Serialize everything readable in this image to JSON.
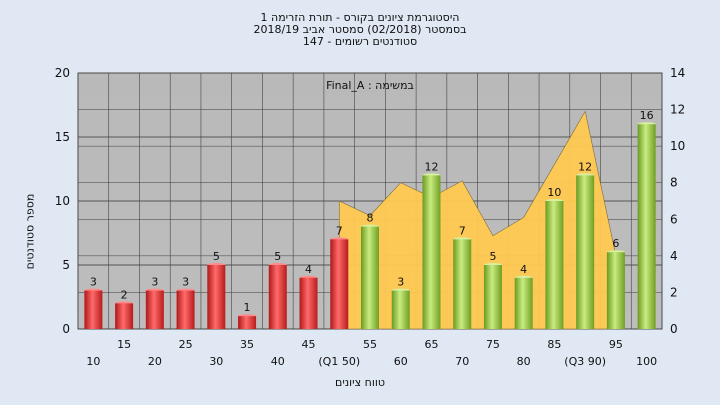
{
  "header": {
    "line1": "היסטוגרמת ציונים בקורס - תורת הזרימה 1",
    "line2": "בסמסטר  (02/2018)  סמסטר אביב 2018/19",
    "line3": "סטודנטים רשומים - 147"
  },
  "chart_data": {
    "type": "bar",
    "annotation": "Final_A : במשימה",
    "xlabel": "טווח ציונים",
    "ylabel": "מספר סטודנטים",
    "ylim": [
      0,
      20
    ],
    "y_ticks": [
      0,
      5,
      10,
      15,
      20
    ],
    "y2lim": [
      0,
      14
    ],
    "y2_ticks": [
      0,
      2,
      4,
      6,
      8,
      10,
      12,
      14
    ],
    "categories": [
      "10",
      "15",
      "20",
      "25",
      "30",
      "35",
      "40",
      "45",
      "(Q1 50)",
      "55",
      "60",
      "65",
      "70",
      "75",
      "80",
      "85",
      "(Q3 90)",
      "95",
      "100"
    ],
    "values": [
      3,
      2,
      3,
      3,
      5,
      1,
      5,
      4,
      7,
      8,
      3,
      12,
      7,
      5,
      4,
      10,
      12,
      6,
      16
    ],
    "bar_colors": [
      "#e03030",
      "#e03030",
      "#e03030",
      "#e03030",
      "#e03030",
      "#e03030",
      "#e03030",
      "#e03030",
      "#e03030",
      "#8fc040",
      "#8fc040",
      "#8fc040",
      "#8fc040",
      "#8fc040",
      "#8fc040",
      "#8fc040",
      "#8fc040",
      "#8fc040",
      "#8fc040"
    ],
    "area_series": {
      "axis": "secondary",
      "color": "#ffc850",
      "x_categories": [
        "(Q1 50)",
        "55",
        "60",
        "65",
        "70",
        "75",
        "80",
        "85",
        "(Q3 90)",
        "95"
      ],
      "values": [
        7,
        6.2,
        8.0,
        7.2,
        8.1,
        5.1,
        6.1,
        9.0,
        11.9,
        4.0
      ]
    },
    "grid": true,
    "legend": "none"
  }
}
